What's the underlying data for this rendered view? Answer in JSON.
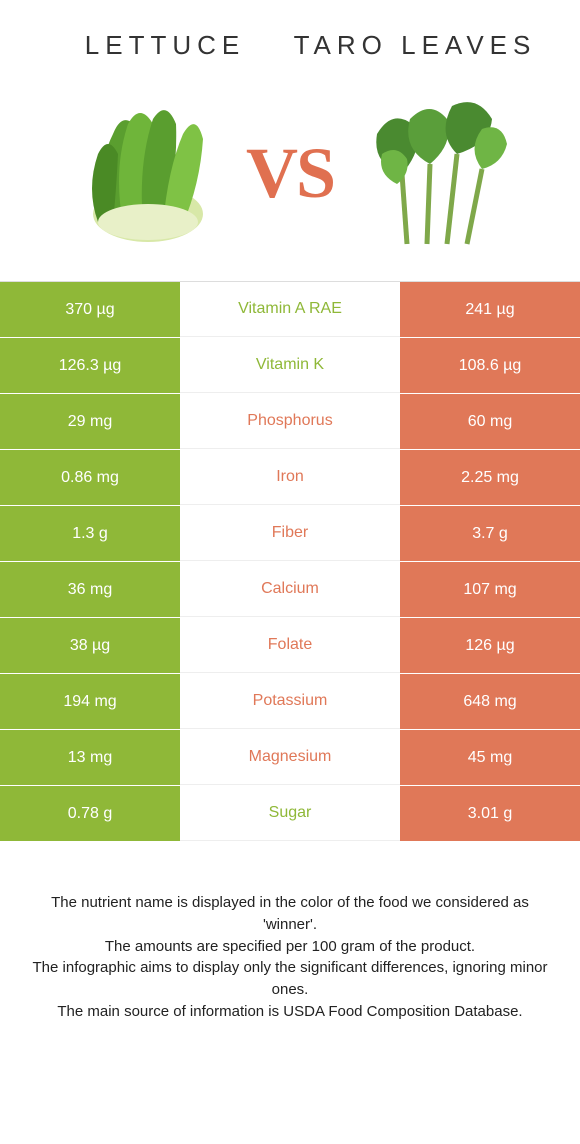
{
  "colors": {
    "green": "#8fb838",
    "orange": "#e07858",
    "vs": "#e07050",
    "text": "#333333"
  },
  "header": {
    "left_title": "LETTUCE",
    "right_title": "TARO LEAVES",
    "vs": "VS"
  },
  "rows": [
    {
      "left": "370 µg",
      "mid": "Vitamin A RAE",
      "right": "241 µg",
      "winner": "left"
    },
    {
      "left": "126.3 µg",
      "mid": "Vitamin K",
      "right": "108.6 µg",
      "winner": "left"
    },
    {
      "left": "29 mg",
      "mid": "Phosphorus",
      "right": "60 mg",
      "winner": "right"
    },
    {
      "left": "0.86 mg",
      "mid": "Iron",
      "right": "2.25 mg",
      "winner": "right"
    },
    {
      "left": "1.3 g",
      "mid": "Fiber",
      "right": "3.7 g",
      "winner": "right"
    },
    {
      "left": "36 mg",
      "mid": "Calcium",
      "right": "107 mg",
      "winner": "right"
    },
    {
      "left": "38 µg",
      "mid": "Folate",
      "right": "126 µg",
      "winner": "right"
    },
    {
      "left": "194 mg",
      "mid": "Potassium",
      "right": "648 mg",
      "winner": "right"
    },
    {
      "left": "13 mg",
      "mid": "Magnesium",
      "right": "45 mg",
      "winner": "right"
    },
    {
      "left": "0.78 g",
      "mid": "Sugar",
      "right": "3.01 g",
      "winner": "left"
    }
  ],
  "footer": {
    "line1": "The nutrient name is displayed in the color of the food we considered as 'winner'.",
    "line2": "The amounts are specified per 100 gram of the product.",
    "line3": "The infographic aims to display only the significant differences, ignoring minor ones.",
    "line4": "The main source of information is USDA Food Composition Database."
  }
}
